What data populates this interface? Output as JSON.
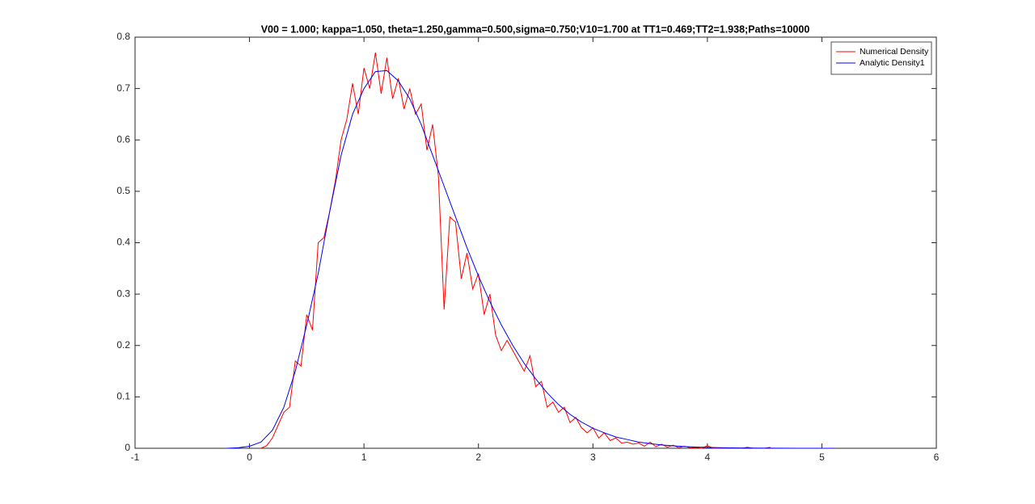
{
  "chart_data": {
    "type": "line",
    "title": "V00 = 1.000; kappa=1.050, theta=1.250,gamma=0.500,sigma=0.750;V10=1.700 at TT1=0.469;TT2=1.938;Paths=10000",
    "xlim": [
      -1,
      6
    ],
    "xticks": [
      -1,
      0,
      1,
      2,
      3,
      4,
      5,
      6
    ],
    "ylim": [
      0,
      0.8
    ],
    "yticks": [
      0,
      0.1,
      0.2,
      0.3,
      0.4,
      0.5,
      0.6,
      0.7,
      0.8
    ],
    "legend": "top-right",
    "series": [
      {
        "name": "Numerical Density",
        "color": "#ff0000",
        "x": [
          0.1,
          0.15,
          0.2,
          0.25,
          0.3,
          0.35,
          0.4,
          0.45,
          0.5,
          0.55,
          0.6,
          0.65,
          0.7,
          0.75,
          0.8,
          0.85,
          0.9,
          0.95,
          1.0,
          1.05,
          1.1,
          1.15,
          1.2,
          1.25,
          1.3,
          1.35,
          1.4,
          1.45,
          1.5,
          1.55,
          1.6,
          1.65,
          1.7,
          1.75,
          1.8,
          1.85,
          1.9,
          1.95,
          2.0,
          2.05,
          2.1,
          2.15,
          2.2,
          2.25,
          2.3,
          2.35,
          2.4,
          2.45,
          2.5,
          2.55,
          2.6,
          2.65,
          2.7,
          2.75,
          2.8,
          2.85,
          2.9,
          2.95,
          3.0,
          3.05,
          3.1,
          3.15,
          3.2,
          3.25,
          3.3,
          3.35,
          3.4,
          3.45,
          3.5,
          3.55,
          3.6,
          3.65,
          3.7,
          3.75,
          3.8,
          3.85,
          3.9,
          3.95,
          4.0,
          4.05,
          4.3,
          4.35,
          4.4,
          4.5,
          4.55
        ],
        "values": [
          0,
          0.005,
          0.02,
          0.045,
          0.07,
          0.08,
          0.17,
          0.16,
          0.26,
          0.23,
          0.4,
          0.41,
          0.46,
          0.52,
          0.6,
          0.64,
          0.71,
          0.65,
          0.74,
          0.7,
          0.77,
          0.69,
          0.76,
          0.68,
          0.72,
          0.66,
          0.7,
          0.65,
          0.67,
          0.58,
          0.63,
          0.53,
          0.27,
          0.45,
          0.44,
          0.33,
          0.38,
          0.31,
          0.34,
          0.26,
          0.3,
          0.22,
          0.19,
          0.21,
          0.19,
          0.17,
          0.15,
          0.18,
          0.12,
          0.13,
          0.08,
          0.09,
          0.07,
          0.08,
          0.05,
          0.06,
          0.04,
          0.03,
          0.04,
          0.02,
          0.03,
          0.015,
          0.02,
          0.01,
          0.012,
          0.008,
          0.01,
          0.004,
          0.012,
          0.003,
          0.008,
          0.002,
          0.006,
          0.001,
          0.004,
          0.001,
          0.002,
          0,
          0.005,
          0,
          0,
          0.002,
          0,
          0,
          0.002
        ]
      },
      {
        "name": "Analytic Density1",
        "color": "#0000ff",
        "x": [
          -0.2,
          -0.1,
          0,
          0.1,
          0.2,
          0.3,
          0.4,
          0.5,
          0.6,
          0.7,
          0.8,
          0.9,
          1.0,
          1.1,
          1.2,
          1.3,
          1.4,
          1.5,
          1.6,
          1.7,
          1.8,
          1.9,
          2.0,
          2.1,
          2.2,
          2.3,
          2.4,
          2.5,
          2.6,
          2.7,
          2.8,
          2.9,
          3.0,
          3.1,
          3.2,
          3.3,
          3.4,
          3.5,
          3.6,
          3.7,
          3.8,
          3.9,
          4.0,
          4.2,
          4.4,
          4.6,
          4.8,
          5.0,
          5.1
        ],
        "values": [
          0,
          0.001,
          0.004,
          0.012,
          0.035,
          0.08,
          0.15,
          0.24,
          0.34,
          0.46,
          0.57,
          0.65,
          0.7,
          0.733,
          0.735,
          0.715,
          0.68,
          0.63,
          0.57,
          0.51,
          0.45,
          0.39,
          0.335,
          0.285,
          0.24,
          0.2,
          0.165,
          0.135,
          0.108,
          0.085,
          0.066,
          0.051,
          0.039,
          0.03,
          0.022,
          0.017,
          0.012,
          0.009,
          0.0065,
          0.0047,
          0.0034,
          0.0024,
          0.0017,
          0.0008,
          0.0004,
          0.0002,
          0.0001,
          0,
          0
        ]
      }
    ]
  }
}
